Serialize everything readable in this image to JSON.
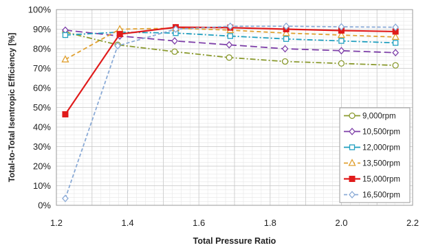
{
  "chart_data": {
    "type": "line",
    "xlabel": "Total Pressure Ratio",
    "ylabel": "Total-to-Total Isentropic Efficiency [%]",
    "xlim": [
      1.2,
      2.2
    ],
    "ylim": [
      0,
      100
    ],
    "xticks": [
      "1.2",
      "1.4",
      "1.6",
      "1.8",
      "2.0",
      "2.2"
    ],
    "yticks": [
      "0%",
      "10%",
      "20%",
      "30%",
      "40%",
      "50%",
      "60%",
      "70%",
      "80%",
      "90%",
      "100%"
    ],
    "grid": true,
    "legend_position": "bottom-right",
    "series": [
      {
        "name": "9,000rpm",
        "color": "#8a9a2e",
        "marker": "circle",
        "dash": "8,3,2,3",
        "x": [
          1.225,
          1.372,
          1.532,
          1.685,
          1.842,
          2.0,
          2.152
        ],
        "y": [
          88.5,
          82,
          78.5,
          75.5,
          73.5,
          72.5,
          71.5
        ]
      },
      {
        "name": "10,500rpm",
        "color": "#7d3ea8",
        "marker": "diamond",
        "dash": "10,5",
        "x": [
          1.225,
          1.378,
          1.532,
          1.685,
          1.842,
          2.0,
          2.152
        ],
        "y": [
          89.5,
          86.5,
          84,
          82,
          80,
          79,
          78
        ]
      },
      {
        "name": "12,000rpm",
        "color": "#1f9fbf",
        "marker": "square",
        "dash": "8,3,2,3",
        "x": [
          1.225,
          1.378,
          1.535,
          1.688,
          1.845,
          2.0,
          2.152
        ],
        "y": [
          87,
          88.5,
          88,
          86.5,
          85,
          84,
          83
        ]
      },
      {
        "name": "13,500rpm",
        "color": "#e0a030",
        "marker": "triangle",
        "dash": "6,4",
        "x": [
          1.225,
          1.378,
          1.535,
          1.688,
          1.845,
          2.0,
          2.152
        ],
        "y": [
          74.5,
          90,
          90.5,
          89.5,
          88,
          87,
          86
        ]
      },
      {
        "name": "15,000rpm",
        "color": "#e01b1b",
        "marker": "filled-square",
        "dash": "",
        "x": [
          1.225,
          1.378,
          1.535,
          1.688,
          1.845,
          2.0,
          2.152
        ],
        "y": [
          46.5,
          87.5,
          91,
          90.8,
          90,
          89.3,
          88.8
        ]
      },
      {
        "name": "16,500rpm",
        "color": "#8aaad6",
        "marker": "diamond",
        "dash": "5,3",
        "x": [
          1.225,
          1.372,
          1.535,
          1.688,
          1.845,
          2.0,
          2.152
        ],
        "y": [
          3.5,
          81.5,
          90,
          91.5,
          91.5,
          91.2,
          91
        ]
      }
    ]
  }
}
